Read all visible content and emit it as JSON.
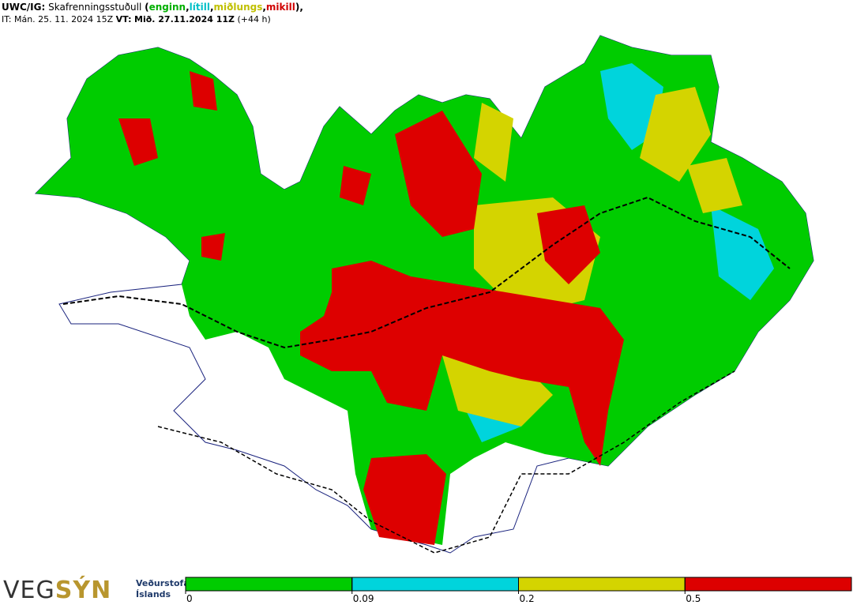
{
  "header": {
    "code": "UWC/IG:",
    "name": "Skafrenningsstuðull",
    "open": "(",
    "sep": ",",
    "close": "),",
    "levels": [
      {
        "text": "enginn",
        "color": "#00b000"
      },
      {
        "text": "lítill",
        "color": "#00c0c8"
      },
      {
        "text": "miðlungs",
        "color": "#c0c000"
      },
      {
        "text": "mikill",
        "color": "#d00000"
      }
    ],
    "issue_prefix": "IT:",
    "issue_time": "Mán. 25. 11. 2024 15Z",
    "valid_prefix": "VT:",
    "valid_time": "Mið. 27.11.2024 11Z",
    "lead": "(+44 h)"
  },
  "legend": {
    "colors": [
      "#00cc00",
      "#00d4dc",
      "#d4d400",
      "#dd0000"
    ],
    "ticks": [
      0,
      0.09,
      0.2,
      0.5
    ]
  },
  "logo": {
    "part1": "VEG",
    "part2": "SÝN",
    "org_line1": "Veðurstofa",
    "org_line2": "Íslands"
  }
}
